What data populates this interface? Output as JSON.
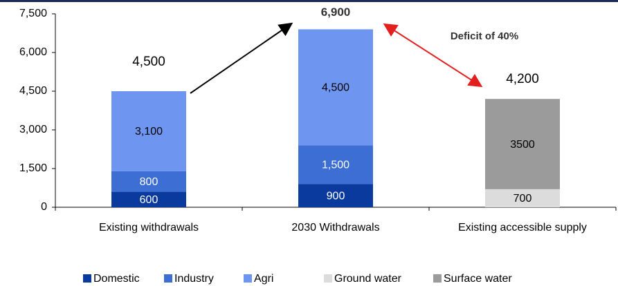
{
  "chart_data": {
    "type": "stacked_bar",
    "categories": [
      "Existing withdrawals",
      "2030 Withdrawals",
      "Existing accessible supply"
    ],
    "series": [
      {
        "name": "Domestic",
        "color": "#0b3a9e",
        "values": [
          600,
          900,
          null
        ],
        "value_labels": [
          "600",
          "900",
          null
        ]
      },
      {
        "name": "Industry",
        "color": "#3d6ed3",
        "values": [
          800,
          1500,
          null
        ],
        "value_labels": [
          "800",
          "1,500",
          null
        ]
      },
      {
        "name": "Agri",
        "color": "#6e96f0",
        "values": [
          3100,
          4500,
          null
        ],
        "value_labels": [
          "3,100",
          "4,500",
          null
        ]
      },
      {
        "name": "Ground water",
        "color": "#dcdcdc",
        "values": [
          null,
          null,
          700
        ],
        "value_labels": [
          null,
          null,
          "700"
        ]
      },
      {
        "name": "Surface water",
        "color": "#9b9b9b",
        "values": [
          null,
          null,
          3500
        ],
        "value_labels": [
          null,
          null,
          "3500"
        ]
      }
    ],
    "totals": [
      4500,
      6900,
      4200
    ],
    "total_labels": [
      "4,500",
      "6,900",
      "4,200"
    ],
    "annotation": "Deficit of 40%",
    "ylim": [
      0,
      7500
    ],
    "yticks": [
      0,
      {
        "value": 1500,
        "label": "1,500"
      },
      {
        "value": 3000,
        "label": "3,000"
      },
      {
        "value": 4500,
        "label": "4,500"
      },
      {
        "value": 6000,
        "label": "6,000"
      },
      {
        "value": 7500,
        "label": "7,500"
      }
    ],
    "legend": "bottom"
  }
}
